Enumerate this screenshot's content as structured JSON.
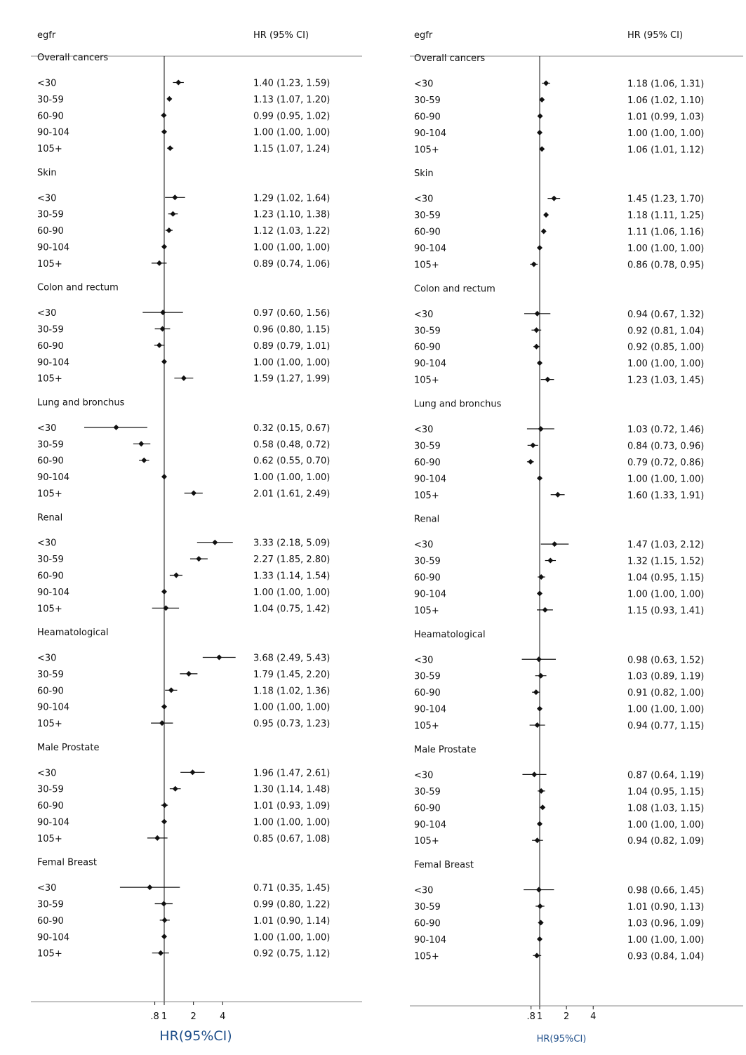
{
  "chart_data": [
    {
      "type": "forest",
      "header_left": "egfr",
      "header_right": "HR (95% CI)",
      "xlabel": "HR(95%CI)",
      "xticks": [
        ".8",
        "1",
        "2",
        "4"
      ],
      "xscale": "log",
      "reference_line": 1,
      "groups": [
        {
          "name": "Overall cancers",
          "rows": [
            {
              "label": "<30",
              "hr": 1.4,
              "lo": 1.23,
              "hi": 1.59,
              "text": "1.40 (1.23, 1.59)"
            },
            {
              "label": "30-59",
              "hr": 1.13,
              "lo": 1.07,
              "hi": 1.2,
              "text": "1.13 (1.07, 1.20)"
            },
            {
              "label": "60-90",
              "hr": 0.99,
              "lo": 0.95,
              "hi": 1.02,
              "text": "0.99 (0.95, 1.02)"
            },
            {
              "label": "90-104",
              "hr": 1.0,
              "lo": 1.0,
              "hi": 1.0,
              "text": "1.00 (1.00, 1.00)"
            },
            {
              "label": "105+",
              "hr": 1.15,
              "lo": 1.07,
              "hi": 1.24,
              "text": "1.15 (1.07, 1.24)"
            }
          ]
        },
        {
          "name": "Skin",
          "rows": [
            {
              "label": "<30",
              "hr": 1.29,
              "lo": 1.02,
              "hi": 1.64,
              "text": "1.29 (1.02, 1.64)"
            },
            {
              "label": "30-59",
              "hr": 1.23,
              "lo": 1.1,
              "hi": 1.38,
              "text": "1.23 (1.10, 1.38)"
            },
            {
              "label": "60-90",
              "hr": 1.12,
              "lo": 1.03,
              "hi": 1.22,
              "text": "1.12 (1.03, 1.22)"
            },
            {
              "label": "90-104",
              "hr": 1.0,
              "lo": 1.0,
              "hi": 1.0,
              "text": "1.00 (1.00, 1.00)"
            },
            {
              "label": "105+",
              "hr": 0.89,
              "lo": 0.74,
              "hi": 1.06,
              "text": "0.89 (0.74, 1.06)"
            }
          ]
        },
        {
          "name": "Colon and rectum",
          "rows": [
            {
              "label": "<30",
              "hr": 0.97,
              "lo": 0.6,
              "hi": 1.56,
              "text": "0.97 (0.60, 1.56)"
            },
            {
              "label": "30-59",
              "hr": 0.96,
              "lo": 0.8,
              "hi": 1.15,
              "text": "0.96 (0.80, 1.15)"
            },
            {
              "label": "60-90",
              "hr": 0.89,
              "lo": 0.79,
              "hi": 1.01,
              "text": "0.89 (0.79, 1.01)"
            },
            {
              "label": "90-104",
              "hr": 1.0,
              "lo": 1.0,
              "hi": 1.0,
              "text": "1.00 (1.00, 1.00)"
            },
            {
              "label": "105+",
              "hr": 1.59,
              "lo": 1.27,
              "hi": 1.99,
              "text": "1.59 (1.27, 1.99)"
            }
          ]
        },
        {
          "name": "Lung and bronchus",
          "rows": [
            {
              "label": "<30",
              "hr": 0.32,
              "lo": 0.15,
              "hi": 0.67,
              "text": "0.32 (0.15, 0.67)"
            },
            {
              "label": "30-59",
              "hr": 0.58,
              "lo": 0.48,
              "hi": 0.72,
              "text": "0.58 (0.48, 0.72)"
            },
            {
              "label": "60-90",
              "hr": 0.62,
              "lo": 0.55,
              "hi": 0.7,
              "text": "0.62 (0.55, 0.70)"
            },
            {
              "label": "90-104",
              "hr": 1.0,
              "lo": 1.0,
              "hi": 1.0,
              "text": "1.00 (1.00, 1.00)"
            },
            {
              "label": "105+",
              "hr": 2.01,
              "lo": 1.61,
              "hi": 2.49,
              "text": "2.01 (1.61, 2.49)"
            }
          ]
        },
        {
          "name": "Renal",
          "rows": [
            {
              "label": "<30",
              "hr": 3.33,
              "lo": 2.18,
              "hi": 5.09,
              "text": "3.33 (2.18, 5.09)"
            },
            {
              "label": "30-59",
              "hr": 2.27,
              "lo": 1.85,
              "hi": 2.8,
              "text": "2.27 (1.85, 2.80)"
            },
            {
              "label": "60-90",
              "hr": 1.33,
              "lo": 1.14,
              "hi": 1.54,
              "text": "1.33 (1.14, 1.54)"
            },
            {
              "label": "90-104",
              "hr": 1.0,
              "lo": 1.0,
              "hi": 1.0,
              "text": "1.00 (1.00, 1.00)"
            },
            {
              "label": "105+",
              "hr": 1.04,
              "lo": 0.75,
              "hi": 1.42,
              "text": "1.04 (0.75, 1.42)"
            }
          ]
        },
        {
          "name": "Heamatological",
          "rows": [
            {
              "label": "<30",
              "hr": 3.68,
              "lo": 2.49,
              "hi": 5.43,
              "text": "3.68 (2.49, 5.43)"
            },
            {
              "label": "30-59",
              "hr": 1.79,
              "lo": 1.45,
              "hi": 2.2,
              "text": "1.79 (1.45, 2.20)"
            },
            {
              "label": "60-90",
              "hr": 1.18,
              "lo": 1.02,
              "hi": 1.36,
              "text": "1.18 (1.02, 1.36)"
            },
            {
              "label": "90-104",
              "hr": 1.0,
              "lo": 1.0,
              "hi": 1.0,
              "text": "1.00 (1.00, 1.00)"
            },
            {
              "label": "105+",
              "hr": 0.95,
              "lo": 0.73,
              "hi": 1.23,
              "text": "0.95 (0.73, 1.23)"
            }
          ]
        },
        {
          "name": "Male Prostate",
          "rows": [
            {
              "label": "<30",
              "hr": 1.96,
              "lo": 1.47,
              "hi": 2.61,
              "text": "1.96 (1.47, 2.61)"
            },
            {
              "label": "30-59",
              "hr": 1.3,
              "lo": 1.14,
              "hi": 1.48,
              "text": "1.30 (1.14, 1.48)"
            },
            {
              "label": "60-90",
              "hr": 1.01,
              "lo": 0.93,
              "hi": 1.09,
              "text": "1.01 (0.93, 1.09)"
            },
            {
              "label": "90-104",
              "hr": 1.0,
              "lo": 1.0,
              "hi": 1.0,
              "text": "1.00 (1.00, 1.00)"
            },
            {
              "label": "105+",
              "hr": 0.85,
              "lo": 0.67,
              "hi": 1.08,
              "text": "0.85 (0.67, 1.08)"
            }
          ]
        },
        {
          "name": "Femal Breast",
          "rows": [
            {
              "label": "<30",
              "hr": 0.71,
              "lo": 0.35,
              "hi": 1.45,
              "text": "0.71 (0.35, 1.45)"
            },
            {
              "label": "30-59",
              "hr": 0.99,
              "lo": 0.8,
              "hi": 1.22,
              "text": "0.99 (0.80, 1.22)"
            },
            {
              "label": "60-90",
              "hr": 1.01,
              "lo": 0.9,
              "hi": 1.14,
              "text": "1.01 (0.90, 1.14)"
            },
            {
              "label": "90-104",
              "hr": 1.0,
              "lo": 1.0,
              "hi": 1.0,
              "text": "1.00 (1.00, 1.00)"
            },
            {
              "label": "105+",
              "hr": 0.92,
              "lo": 0.75,
              "hi": 1.12,
              "text": "0.92 (0.75, 1.12)"
            }
          ]
        }
      ]
    },
    {
      "type": "forest",
      "header_left": "egfr",
      "header_right": "HR (95% CI)",
      "xlabel": "HR(95%CI)",
      "xticks": [
        ".8",
        "1",
        "2",
        "4"
      ],
      "xscale": "log",
      "reference_line": 1,
      "groups": [
        {
          "name": "Overall cancers",
          "rows": [
            {
              "label": "<30",
              "hr": 1.18,
              "lo": 1.06,
              "hi": 1.31,
              "text": "1.18 (1.06, 1.31)"
            },
            {
              "label": "30-59",
              "hr": 1.06,
              "lo": 1.02,
              "hi": 1.1,
              "text": "1.06 (1.02, 1.10)"
            },
            {
              "label": "60-90",
              "hr": 1.01,
              "lo": 0.99,
              "hi": 1.03,
              "text": "1.01 (0.99, 1.03)"
            },
            {
              "label": "90-104",
              "hr": 1.0,
              "lo": 1.0,
              "hi": 1.0,
              "text": "1.00 (1.00, 1.00)"
            },
            {
              "label": "105+",
              "hr": 1.06,
              "lo": 1.01,
              "hi": 1.12,
              "text": "1.06 (1.01, 1.12)"
            }
          ]
        },
        {
          "name": "Skin",
          "rows": [
            {
              "label": "<30",
              "hr": 1.45,
              "lo": 1.23,
              "hi": 1.7,
              "text": "1.45 (1.23, 1.70)"
            },
            {
              "label": "30-59",
              "hr": 1.18,
              "lo": 1.11,
              "hi": 1.25,
              "text": "1.18 (1.11, 1.25)"
            },
            {
              "label": "60-90",
              "hr": 1.11,
              "lo": 1.06,
              "hi": 1.16,
              "text": "1.11 (1.06, 1.16)"
            },
            {
              "label": "90-104",
              "hr": 1.0,
              "lo": 1.0,
              "hi": 1.0,
              "text": "1.00 (1.00, 1.00)"
            },
            {
              "label": "105+",
              "hr": 0.86,
              "lo": 0.78,
              "hi": 0.95,
              "text": "0.86 (0.78, 0.95)"
            }
          ]
        },
        {
          "name": "Colon and rectum",
          "rows": [
            {
              "label": "<30",
              "hr": 0.94,
              "lo": 0.67,
              "hi": 1.32,
              "text": "0.94 (0.67, 1.32)"
            },
            {
              "label": "30-59",
              "hr": 0.92,
              "lo": 0.81,
              "hi": 1.04,
              "text": "0.92 (0.81, 1.04)"
            },
            {
              "label": "60-90",
              "hr": 0.92,
              "lo": 0.85,
              "hi": 1.0,
              "text": "0.92 (0.85, 1.00)"
            },
            {
              "label": "90-104",
              "hr": 1.0,
              "lo": 1.0,
              "hi": 1.0,
              "text": "1.00 (1.00, 1.00)"
            },
            {
              "label": "105+",
              "hr": 1.23,
              "lo": 1.03,
              "hi": 1.45,
              "text": "1.23 (1.03, 1.45)"
            }
          ]
        },
        {
          "name": "Lung and bronchus",
          "rows": [
            {
              "label": "<30",
              "hr": 1.03,
              "lo": 0.72,
              "hi": 1.46,
              "text": "1.03 (0.72, 1.46)"
            },
            {
              "label": "30-59",
              "hr": 0.84,
              "lo": 0.73,
              "hi": 0.96,
              "text": "0.84 (0.73, 0.96)"
            },
            {
              "label": "60-90",
              "hr": 0.79,
              "lo": 0.72,
              "hi": 0.86,
              "text": "0.79 (0.72, 0.86)"
            },
            {
              "label": "90-104",
              "hr": 1.0,
              "lo": 1.0,
              "hi": 1.0,
              "text": "1.00 (1.00, 1.00)"
            },
            {
              "label": "105+",
              "hr": 1.6,
              "lo": 1.33,
              "hi": 1.91,
              "text": "1.60 (1.33, 1.91)"
            }
          ]
        },
        {
          "name": "Renal",
          "rows": [
            {
              "label": "<30",
              "hr": 1.47,
              "lo": 1.03,
              "hi": 2.12,
              "text": "1.47 (1.03, 2.12)"
            },
            {
              "label": "30-59",
              "hr": 1.32,
              "lo": 1.15,
              "hi": 1.52,
              "text": "1.32 (1.15, 1.52)"
            },
            {
              "label": "60-90",
              "hr": 1.04,
              "lo": 0.95,
              "hi": 1.15,
              "text": "1.04 (0.95, 1.15)"
            },
            {
              "label": "90-104",
              "hr": 1.0,
              "lo": 1.0,
              "hi": 1.0,
              "text": "1.00 (1.00, 1.00)"
            },
            {
              "label": "105+",
              "hr": 1.15,
              "lo": 0.93,
              "hi": 1.41,
              "text": "1.15 (0.93, 1.41)"
            }
          ]
        },
        {
          "name": "Heamatological",
          "rows": [
            {
              "label": "<30",
              "hr": 0.98,
              "lo": 0.63,
              "hi": 1.52,
              "text": "0.98 (0.63, 1.52)"
            },
            {
              "label": "30-59",
              "hr": 1.03,
              "lo": 0.89,
              "hi": 1.19,
              "text": "1.03 (0.89, 1.19)"
            },
            {
              "label": "60-90",
              "hr": 0.91,
              "lo": 0.82,
              "hi": 1.0,
              "text": "0.91 (0.82, 1.00)"
            },
            {
              "label": "90-104",
              "hr": 1.0,
              "lo": 1.0,
              "hi": 1.0,
              "text": "1.00 (1.00, 1.00)"
            },
            {
              "label": "105+",
              "hr": 0.94,
              "lo": 0.77,
              "hi": 1.15,
              "text": "0.94 (0.77, 1.15)"
            }
          ]
        },
        {
          "name": "Male Prostate",
          "rows": [
            {
              "label": "<30",
              "hr": 0.87,
              "lo": 0.64,
              "hi": 1.19,
              "text": "0.87 (0.64, 1.19)"
            },
            {
              "label": "30-59",
              "hr": 1.04,
              "lo": 0.95,
              "hi": 1.15,
              "text": "1.04 (0.95, 1.15)"
            },
            {
              "label": "60-90",
              "hr": 1.08,
              "lo": 1.03,
              "hi": 1.15,
              "text": "1.08 (1.03, 1.15)"
            },
            {
              "label": "90-104",
              "hr": 1.0,
              "lo": 1.0,
              "hi": 1.0,
              "text": "1.00 (1.00, 1.00)"
            },
            {
              "label": "105+",
              "hr": 0.94,
              "lo": 0.82,
              "hi": 1.09,
              "text": "0.94 (0.82, 1.09)"
            }
          ]
        },
        {
          "name": "Femal Breast",
          "rows": [
            {
              "label": "<30",
              "hr": 0.98,
              "lo": 0.66,
              "hi": 1.45,
              "text": "0.98 (0.66, 1.45)"
            },
            {
              "label": "30-59",
              "hr": 1.01,
              "lo": 0.9,
              "hi": 1.13,
              "text": "1.01 (0.90, 1.13)"
            },
            {
              "label": "60-90",
              "hr": 1.03,
              "lo": 0.96,
              "hi": 1.09,
              "text": "1.03 (0.96, 1.09)"
            },
            {
              "label": "90-104",
              "hr": 1.0,
              "lo": 1.0,
              "hi": 1.0,
              "text": "1.00 (1.00, 1.00)"
            },
            {
              "label": "105+",
              "hr": 0.93,
              "lo": 0.84,
              "hi": 1.04,
              "text": "0.93 (0.84, 1.04)"
            }
          ]
        }
      ]
    }
  ]
}
